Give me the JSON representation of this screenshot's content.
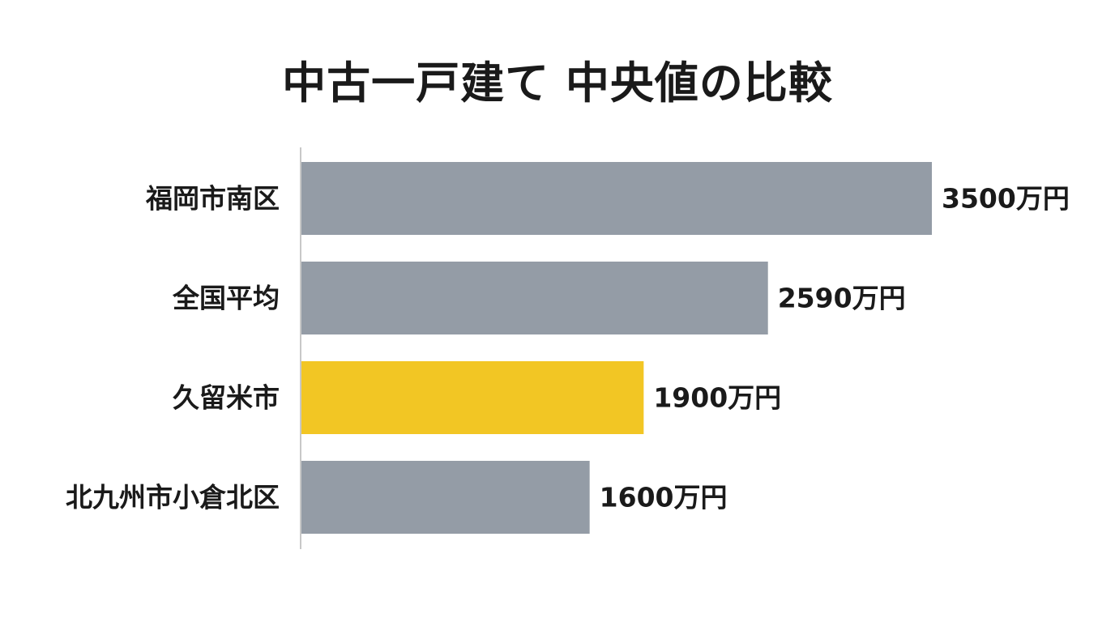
{
  "chart_data": {
    "type": "bar",
    "orientation": "horizontal",
    "title": "中古一戸建て 中央値の比較",
    "categories": [
      "福岡市南区",
      "全国平均",
      "久留米市",
      "北九州市小倉北区"
    ],
    "values": [
      3500,
      2590,
      1900,
      1600
    ],
    "value_labels": [
      "3500万円",
      "2590万円",
      "1900万円",
      "1600万円"
    ],
    "unit": "万円",
    "xlim": [
      0,
      3500
    ],
    "grid": false,
    "legend": "none",
    "colors": {
      "default": "#949ca6",
      "highlight": "#f2c624",
      "axis": "#c8c8c8"
    },
    "highlight_index": 2
  }
}
